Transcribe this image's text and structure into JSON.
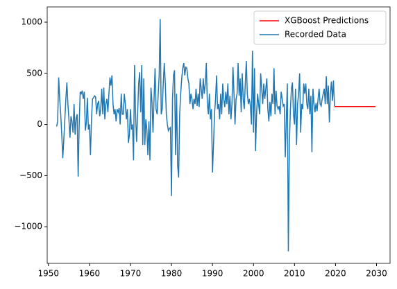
{
  "chart_data": {
    "type": "line",
    "xlim": [
      1949.7,
      2033.3
    ],
    "xticks": [
      1950,
      1960,
      1970,
      1980,
      1990,
      2000,
      2010,
      2020,
      2030
    ],
    "ylim": [
      -1358,
      1149
    ],
    "yticks": [
      {
        "value": -1000,
        "label": "−1000"
      },
      {
        "value": -500,
        "label": "−500"
      },
      0,
      500,
      1000
    ],
    "legend": "upper right",
    "series": [
      {
        "name": "XGBoost Predictions",
        "color": "#ff0000",
        "x": [
          2019.75,
          2029.75
        ],
        "values": [
          175,
          175
        ]
      },
      {
        "name": "Recorded Data",
        "color": "#1f77b4",
        "x": [
          1952,
          1952.25,
          1952.5,
          1952.75,
          1953,
          1953.25,
          1953.5,
          1953.75,
          1954,
          1954.25,
          1954.5,
          1954.75,
          1955,
          1955.25,
          1955.5,
          1955.75,
          1956,
          1956.25,
          1956.5,
          1956.75,
          1957,
          1957.25,
          1957.5,
          1957.75,
          1958,
          1958.25,
          1958.5,
          1958.75,
          1959,
          1959.25,
          1959.5,
          1959.75,
          1960,
          1960.25,
          1960.5,
          1960.75,
          1961,
          1961.25,
          1961.5,
          1961.75,
          1962,
          1962.25,
          1962.5,
          1962.75,
          1963,
          1963.25,
          1963.5,
          1963.75,
          1964,
          1964.25,
          1964.5,
          1964.75,
          1965,
          1965.25,
          1965.5,
          1965.75,
          1966,
          1966.25,
          1966.5,
          1966.75,
          1967,
          1967.25,
          1967.5,
          1967.75,
          1968,
          1968.25,
          1968.5,
          1968.75,
          1969,
          1969.25,
          1969.5,
          1969.75,
          1970,
          1970.25,
          1970.5,
          1970.75,
          1971,
          1971.25,
          1971.5,
          1971.75,
          1972,
          1972.25,
          1972.5,
          1972.75,
          1973,
          1973.25,
          1973.5,
          1973.75,
          1974,
          1974.25,
          1974.5,
          1974.75,
          1975,
          1975.25,
          1975.5,
          1975.75,
          1976,
          1976.25,
          1976.5,
          1976.75,
          1977,
          1977.25,
          1977.5,
          1977.75,
          1978,
          1978.25,
          1978.5,
          1978.75,
          1979,
          1979.25,
          1979.5,
          1979.75,
          1980,
          1980.25,
          1980.5,
          1980.75,
          1981,
          1981.25,
          1981.5,
          1981.75,
          1982,
          1982.25,
          1982.5,
          1982.75,
          1983,
          1983.25,
          1983.5,
          1983.75,
          1984,
          1984.25,
          1984.5,
          1984.75,
          1985,
          1985.25,
          1985.5,
          1985.75,
          1986,
          1986.25,
          1986.5,
          1986.75,
          1987,
          1987.25,
          1987.5,
          1987.75,
          1988,
          1988.25,
          1988.5,
          1988.75,
          1989,
          1989.25,
          1989.5,
          1989.75,
          1990,
          1990.25,
          1990.5,
          1990.75,
          1991,
          1991.25,
          1991.5,
          1991.75,
          1992,
          1992.25,
          1992.5,
          1992.75,
          1993,
          1993.25,
          1993.5,
          1993.75,
          1994,
          1994.25,
          1994.5,
          1994.75,
          1995,
          1995.25,
          1995.5,
          1995.75,
          1996,
          1996.25,
          1996.5,
          1996.75,
          1997,
          1997.25,
          1997.5,
          1997.75,
          1998,
          1998.25,
          1998.5,
          1998.75,
          1999,
          1999.25,
          1999.5,
          1999.75,
          2000,
          2000.25,
          2000.5,
          2000.75,
          2001,
          2001.25,
          2001.5,
          2001.75,
          2002,
          2002.25,
          2002.5,
          2002.75,
          2003,
          2003.25,
          2003.5,
          2003.75,
          2004,
          2004.25,
          2004.5,
          2004.75,
          2005,
          2005.25,
          2005.5,
          2005.75,
          2006,
          2006.25,
          2006.5,
          2006.75,
          2007,
          2007.25,
          2007.5,
          2007.75,
          2008,
          2008.25,
          2008.5,
          2008.75,
          2009,
          2009.25,
          2009.5,
          2009.75,
          2010,
          2010.25,
          2010.5,
          2010.75,
          2011,
          2011.25,
          2011.5,
          2011.75,
          2012,
          2012.25,
          2012.5,
          2012.75,
          2013,
          2013.25,
          2013.5,
          2013.75,
          2014,
          2014.25,
          2014.5,
          2014.75,
          2015,
          2015.25,
          2015.5,
          2015.75,
          2016,
          2016.25,
          2016.5,
          2016.75,
          2017,
          2017.25,
          2017.5,
          2017.75,
          2018,
          2018.25,
          2018.5,
          2018.75,
          2019,
          2019.25,
          2019.5,
          2019.75
        ],
        "values": [
          -20,
          30,
          460,
          250,
          100,
          -100,
          -330,
          -150,
          50,
          250,
          410,
          200,
          50,
          -130,
          80,
          30,
          -80,
          200,
          -100,
          60,
          100,
          -510,
          0,
          320,
          300,
          330,
          250,
          320,
          -60,
          20,
          260,
          -50,
          0,
          -300,
          50,
          250,
          260,
          280,
          270,
          100,
          200,
          230,
          80,
          150,
          350,
          100,
          360,
          50,
          200,
          250,
          120,
          300,
          460,
          380,
          480,
          200,
          100,
          150,
          30,
          150,
          120,
          160,
          0,
          300,
          100,
          100,
          300,
          200,
          50,
          150,
          -180,
          -100,
          150,
          -50,
          0,
          -350,
          580,
          100,
          -170,
          110,
          400,
          510,
          120,
          580,
          -200,
          450,
          -200,
          50,
          -50,
          -300,
          30,
          -350,
          360,
          220,
          -80,
          250,
          550,
          150,
          100,
          280,
          480,
          1030,
          100,
          150,
          400,
          600,
          400,
          100,
          0,
          -60,
          -40,
          -30,
          -700,
          250,
          480,
          530,
          -300,
          300,
          -400,
          -520,
          100,
          300,
          450,
          550,
          600,
          480,
          560,
          550,
          450,
          400,
          200,
          300,
          250,
          150,
          250,
          200,
          350,
          180,
          300,
          170,
          450,
          350,
          250,
          450,
          300,
          400,
          600,
          200,
          100,
          300,
          50,
          150,
          -470,
          -200,
          100,
          250,
          480,
          150,
          200,
          50,
          300,
          100,
          400,
          250,
          170,
          320,
          200,
          400,
          100,
          280,
          50,
          200,
          560,
          300,
          0,
          250,
          300,
          600,
          280,
          450,
          120,
          500,
          250,
          150,
          400,
          620,
          300,
          200,
          250,
          180,
          0,
          720,
          -80,
          550,
          -260,
          100,
          300,
          200,
          100,
          500,
          350,
          200,
          400,
          250,
          350,
          450,
          150,
          30,
          220,
          80,
          300,
          200,
          550,
          100,
          330,
          180,
          150,
          180,
          100,
          320,
          250,
          180,
          200,
          -320,
          50,
          400,
          -1240,
          -200,
          150,
          350,
          410,
          100,
          0,
          350,
          -200,
          200,
          300,
          500,
          -80,
          200,
          150,
          400,
          300,
          400,
          200,
          150,
          350,
          100,
          280,
          -270,
          350,
          200,
          120,
          210,
          130,
          250,
          350,
          200,
          180,
          250,
          300,
          350,
          200,
          470,
          200,
          380,
          20,
          300,
          420,
          230,
          430,
          180
        ]
      }
    ]
  }
}
